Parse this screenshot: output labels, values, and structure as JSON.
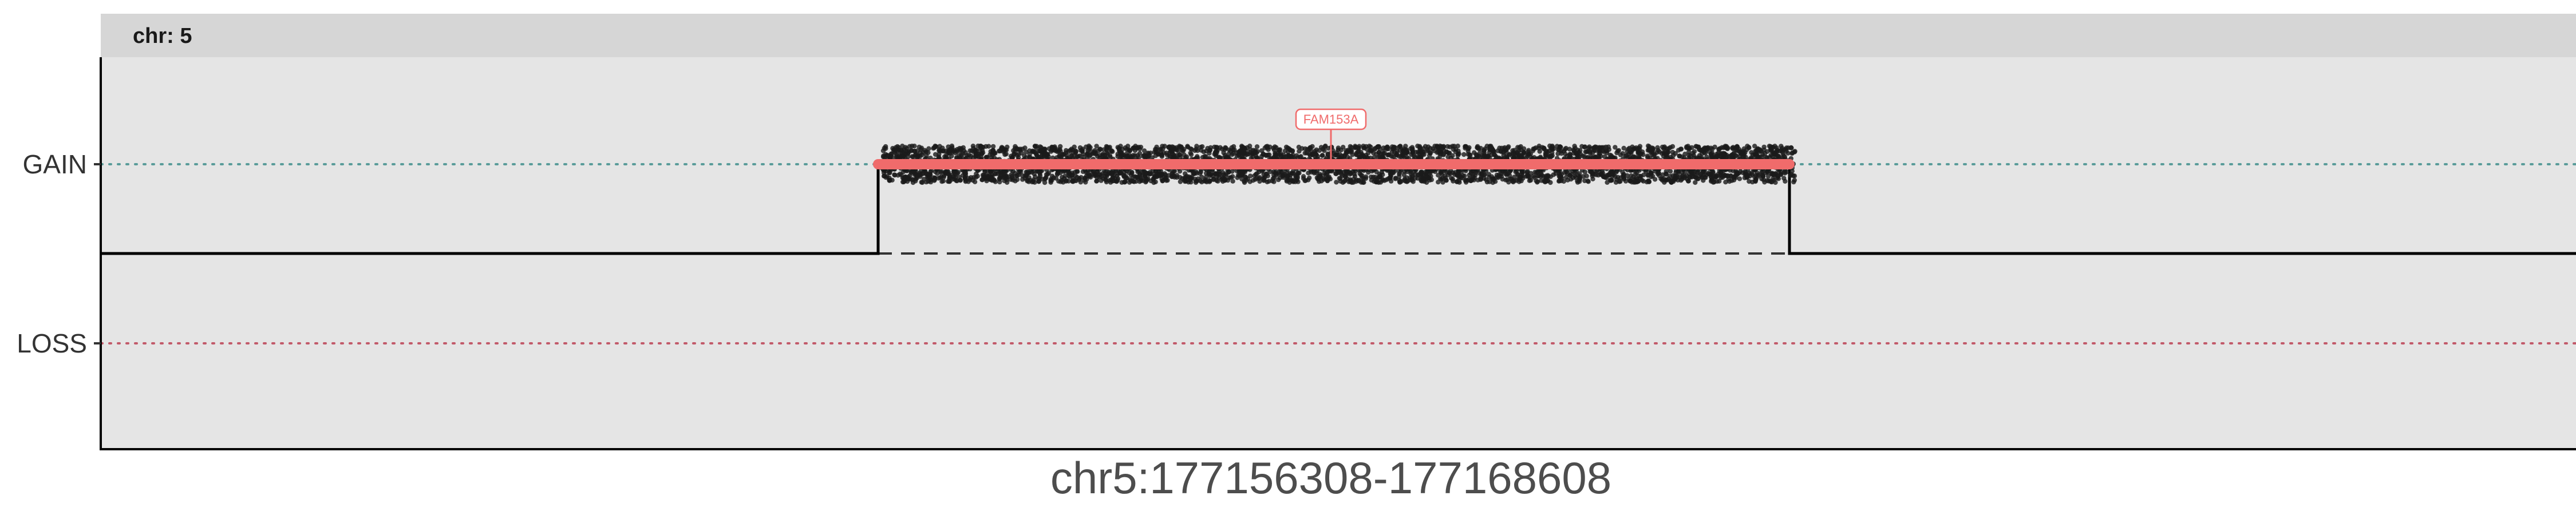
{
  "chart_data": {
    "type": "scatter",
    "title": "",
    "facet_label": "chr: 5",
    "xlabel": "chr5:177156308-177168608",
    "ylabel": "",
    "y_categories": [
      "GAIN",
      "LOSS"
    ],
    "x_range": [
      0,
      1
    ],
    "segment": {
      "start_frac": 0.315,
      "end_frac": 0.685,
      "state": "GAIN"
    },
    "baseline": "neutral",
    "gene_label": {
      "name": "FAM153A",
      "position_frac": 0.5
    },
    "reference_lines": [
      {
        "category": "GAIN",
        "color": "#5a9c9a",
        "style": "dotted"
      },
      {
        "category": "LOSS",
        "color": "#c25a6a",
        "style": "dotted"
      }
    ],
    "points_description_count": 4200,
    "grid": false,
    "legend": "none"
  },
  "colors": {
    "panel_bg": "#e5e5e5",
    "strip_bg": "#d6d6d6",
    "segment": "#f06b6b",
    "points": "#1a1a1a",
    "gain_line": "#5a9c9a",
    "loss_line": "#c25a6a"
  }
}
